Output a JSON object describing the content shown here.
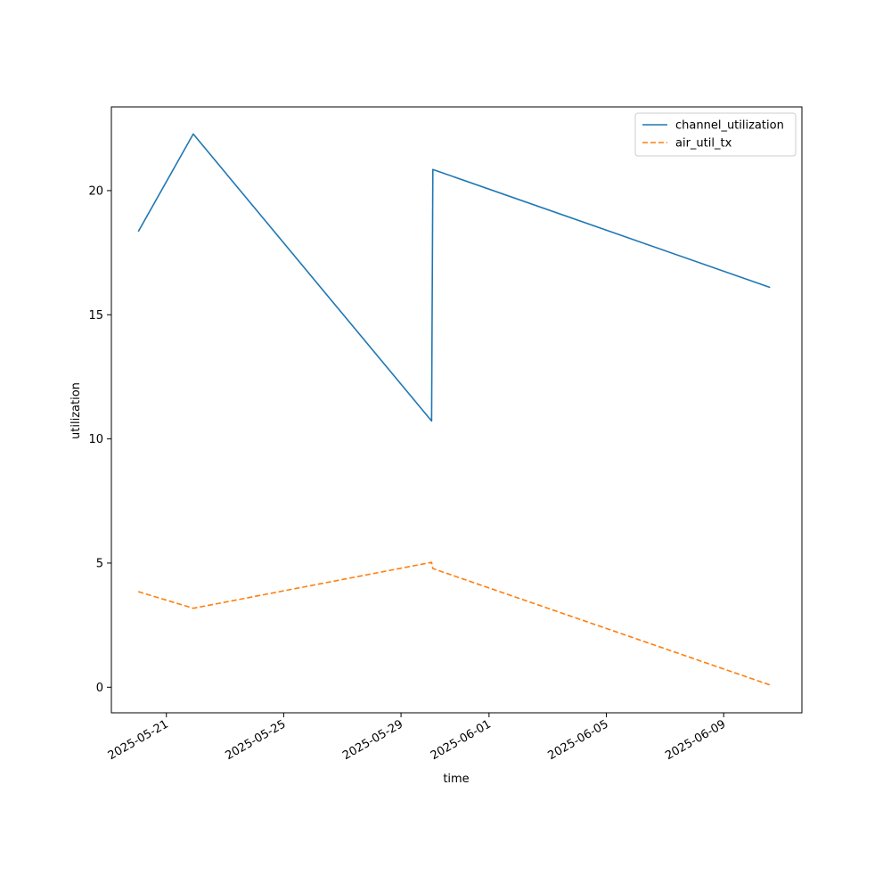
{
  "chart_data": {
    "type": "line",
    "title": "",
    "xlabel": "time",
    "ylabel": "utilization",
    "grid": false,
    "legend_position": "top-right",
    "xlim": [
      "2025-05-19T03:00",
      "2025-06-11T16:00"
    ],
    "ylim": [
      -1.03,
      23.37
    ],
    "x_ticks": [
      "2025-05-21",
      "2025-05-25",
      "2025-05-29",
      "2025-06-01",
      "2025-06-05",
      "2025-06-09"
    ],
    "y_ticks": [
      0,
      5,
      10,
      15,
      20
    ],
    "series": [
      {
        "name": "channel_utilization",
        "color": "#1f77b4",
        "style": "solid",
        "x": [
          "2025-05-20T01:00",
          "2025-05-21T22:00",
          "2025-05-30T01:00",
          "2025-05-30T02:00",
          "2025-06-10T14:00"
        ],
        "y": [
          18.35,
          22.28,
          10.72,
          20.85,
          16.1
        ]
      },
      {
        "name": "air_util_tx",
        "color": "#ff7f0e",
        "style": "dashed",
        "x": [
          "2025-05-20T01:00",
          "2025-05-21T22:00",
          "2025-05-30T01:00",
          "2025-05-30T02:00",
          "2025-06-10T14:00"
        ],
        "y": [
          3.85,
          3.18,
          5.03,
          4.78,
          0.09
        ]
      }
    ]
  }
}
